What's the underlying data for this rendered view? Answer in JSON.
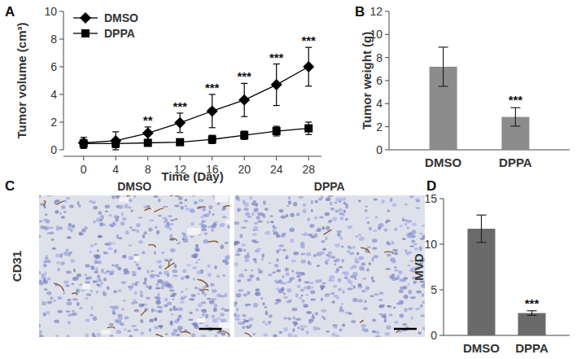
{
  "chart_data": [
    {
      "panel": "A",
      "type": "line",
      "x_label": "Time (Day)",
      "y_label": "Tumor volume (cm³)",
      "x": [
        0,
        4,
        8,
        12,
        16,
        20,
        24,
        28
      ],
      "xlim": [
        -2.5,
        29.6
      ],
      "xticks": [
        0,
        4,
        8,
        12,
        16,
        20,
        24,
        28
      ],
      "ylim": [
        0,
        10
      ],
      "yticks": [
        0,
        2,
        4,
        6,
        8,
        10
      ],
      "legend": "top-left",
      "series": [
        {
          "name": "DMSO",
          "color": "#000000",
          "marker": "diamond",
          "values": [
            0.5,
            0.65,
            1.2,
            1.95,
            2.8,
            3.6,
            4.7,
            6.0
          ],
          "errors": [
            0.4,
            0.65,
            0.45,
            0.7,
            1.2,
            1.2,
            1.5,
            1.4
          ]
        },
        {
          "name": "DPPA",
          "color": "#000000",
          "marker": "square",
          "values": [
            0.45,
            0.45,
            0.5,
            0.55,
            0.75,
            1.05,
            1.35,
            1.55
          ],
          "errors": [
            0.3,
            0.3,
            0.2,
            0.2,
            0.3,
            0.3,
            0.35,
            0.45
          ]
        }
      ],
      "annotations": [
        {
          "x": 8,
          "text": "**"
        },
        {
          "x": 12,
          "text": "***"
        },
        {
          "x": 16,
          "text": "***"
        },
        {
          "x": 20,
          "text": "***"
        },
        {
          "x": 24,
          "text": "***"
        },
        {
          "x": 28,
          "text": "***"
        }
      ]
    },
    {
      "panel": "B",
      "type": "bar",
      "y_label": "Tumor weight (g)",
      "categories": [
        "DMSO",
        "DPPA"
      ],
      "values": [
        7.2,
        2.85
      ],
      "errors": [
        1.7,
        0.8
      ],
      "color": "#8c8c8c",
      "ylim": [
        0,
        12
      ],
      "yticks": [
        0,
        2,
        4,
        6,
        8,
        10,
        12
      ],
      "annotations": [
        {
          "category": "DPPA",
          "text": "***"
        }
      ]
    },
    {
      "panel": "C",
      "type": "image",
      "y_label": "CD31",
      "images": [
        "DMSO",
        "DPPA"
      ]
    },
    {
      "panel": "D",
      "type": "bar",
      "y_label": "MVD",
      "categories": [
        "DMSO",
        "DPPA"
      ],
      "values": [
        11.7,
        2.45
      ],
      "errors": [
        1.5,
        0.25
      ],
      "color": "#6a6a6a",
      "ylim": [
        0,
        15
      ],
      "yticks": [
        0,
        5,
        10,
        15
      ],
      "annotations": [
        {
          "category": "DPPA",
          "text": "***"
        }
      ]
    }
  ]
}
